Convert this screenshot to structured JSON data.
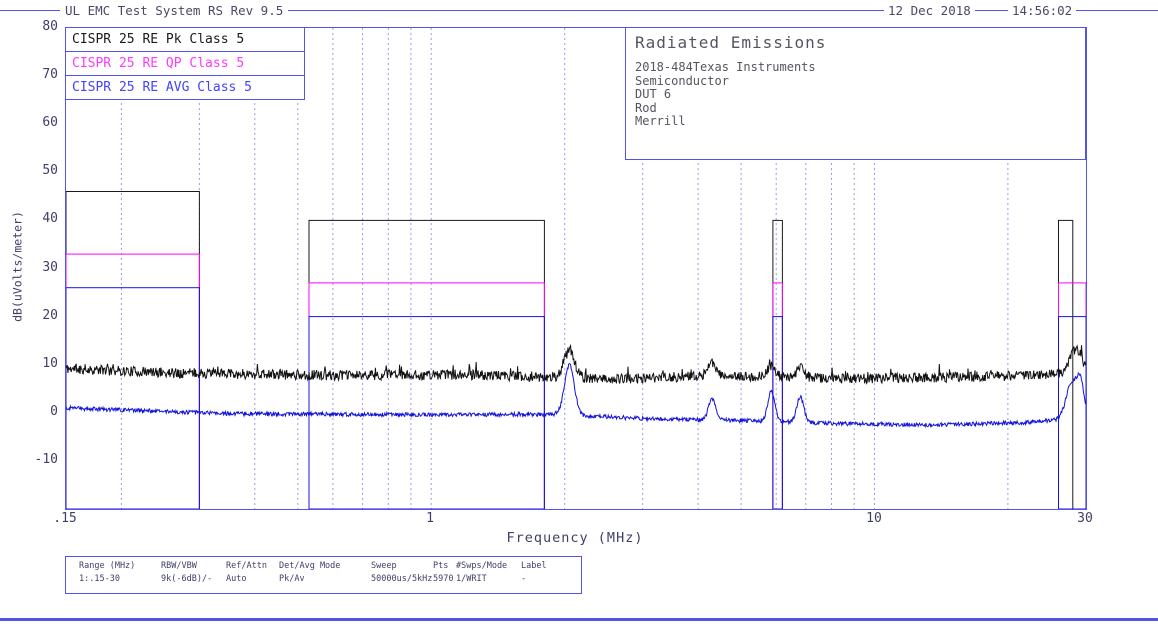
{
  "header": {
    "title": "UL EMC Test System RS Rev 9.5",
    "date": "12 Dec 2018",
    "time": "14:56:02"
  },
  "legend": {
    "items": [
      {
        "label": "CISPR 25 RE Pk Class 5",
        "color": "#1a1a1a"
      },
      {
        "label": "CISPR 25 RE QP Class 5",
        "color": "#ff3aff"
      },
      {
        "label": "CISPR 25 RE AVG Class 5",
        "color": "#4343ff"
      }
    ]
  },
  "info_box": {
    "title": "Radiated Emissions",
    "lines": [
      "2018-484Texas Instruments",
      "Semiconductor",
      "DUT 6",
      "Rod",
      "Merrill"
    ]
  },
  "settings_table": {
    "headers": [
      "Range (MHz)",
      "RBW/VBW",
      "Ref/Attn",
      "Det/Avg Mode",
      "Sweep",
      "Pts",
      "#Swps/Mode",
      "Label"
    ],
    "values": [
      "1:.15-30",
      "9k(-6dB)/-",
      "Auto",
      "Pk/Av",
      "50000us/5kHz",
      "5970",
      "1/WRIT",
      "-"
    ]
  },
  "chart_data": {
    "type": "line",
    "title": "Radiated Emissions",
    "xlabel": "Frequency (MHz)",
    "ylabel": "dB(uVolts/meter)",
    "xscale": "log",
    "xlim": [
      0.15,
      30
    ],
    "ylim": [
      -20,
      80
    ],
    "yticks": [
      80,
      70,
      60,
      50,
      40,
      30,
      20,
      10,
      0,
      -10
    ],
    "xticks": [
      {
        "value": 0.15,
        "label": ".15"
      },
      {
        "value": 1,
        "label": "1"
      },
      {
        "value": 10,
        "label": "10"
      },
      {
        "value": 30,
        "label": "30"
      }
    ],
    "grid_verticals": [
      0.2,
      0.3,
      0.4,
      0.5,
      0.6,
      0.7,
      0.8,
      0.9,
      1,
      2,
      3,
      4,
      5,
      6,
      7,
      8,
      9,
      10,
      20
    ],
    "grid_on": true,
    "legend_position": "top-left",
    "colors": {
      "frame": "#5353e8",
      "grid": "#9a9af0"
    },
    "limits": [
      {
        "name": "CISPR 25 RE Pk Class 5",
        "color": "#1a1a1a",
        "segments": [
          {
            "f_start": 0.15,
            "f_stop": 0.3,
            "level_db": 46
          },
          {
            "f_start": 0.53,
            "f_stop": 1.8,
            "level_db": 40
          },
          {
            "f_start": 5.9,
            "f_stop": 6.2,
            "level_db": 40
          },
          {
            "f_start": 26,
            "f_stop": 28,
            "level_db": 40
          }
        ]
      },
      {
        "name": "CISPR 25 RE QP Class 5",
        "color": "#ff00ff",
        "segments": [
          {
            "f_start": 0.15,
            "f_stop": 0.3,
            "level_db": 33
          },
          {
            "f_start": 0.53,
            "f_stop": 1.8,
            "level_db": 27
          },
          {
            "f_start": 5.9,
            "f_stop": 6.2,
            "level_db": 27
          },
          {
            "f_start": 26,
            "f_stop": 30,
            "level_db": 27
          }
        ]
      },
      {
        "name": "CISPR 25 RE AVG Class 5",
        "color": "#1414e6",
        "segments": [
          {
            "f_start": 0.15,
            "f_stop": 0.3,
            "level_db": 26
          },
          {
            "f_start": 0.53,
            "f_stop": 1.8,
            "level_db": 20
          },
          {
            "f_start": 5.9,
            "f_stop": 6.2,
            "level_db": 20
          },
          {
            "f_start": 26,
            "f_stop": 30,
            "level_db": 20
          }
        ]
      }
    ],
    "traces": [
      {
        "name": "peak-detector-trace",
        "color": "#111111",
        "seed": 11,
        "noise_db": 1.05,
        "spike_db": 1.9,
        "baseline": [
          [
            0.15,
            9.2
          ],
          [
            0.25,
            8.3
          ],
          [
            0.6,
            7.8
          ],
          [
            1.2,
            7.9
          ],
          [
            2.6,
            7.0
          ],
          [
            4,
            7.6
          ],
          [
            6,
            7.4
          ],
          [
            9,
            7.1
          ],
          [
            15,
            7.4
          ],
          [
            23,
            7.8
          ],
          [
            30,
            8.7
          ]
        ],
        "peaks": [
          {
            "f": 2.05,
            "amp": 5.6,
            "width": 0.012
          },
          {
            "f": 4.3,
            "amp": 2.4,
            "width": 0.01
          },
          {
            "f": 5.85,
            "amp": 2.4,
            "width": 0.009
          },
          {
            "f": 6.8,
            "amp": 2.0,
            "width": 0.009
          },
          {
            "f": 28.4,
            "amp": 4.6,
            "width": 0.013
          }
        ]
      },
      {
        "name": "average-detector-trace",
        "color": "#1212dd",
        "seed": 4,
        "noise_db": 0.42,
        "spike_db": 0,
        "baseline": [
          [
            0.15,
            1.0
          ],
          [
            0.35,
            -0.2
          ],
          [
            1,
            -0.4
          ],
          [
            1.9,
            -0.3
          ],
          [
            3,
            -1.2
          ],
          [
            5,
            -1.6
          ],
          [
            8,
            -2.2
          ],
          [
            14,
            -2.5
          ],
          [
            22,
            -2.0
          ],
          [
            30,
            -0.9
          ]
        ],
        "peaks": [
          {
            "f": 2.05,
            "amp": 10.4,
            "width": 0.011
          },
          {
            "f": 4.3,
            "amp": 4.3,
            "width": 0.008
          },
          {
            "f": 5.85,
            "amp": 6.2,
            "width": 0.008
          },
          {
            "f": 6.8,
            "amp": 5.2,
            "width": 0.008
          },
          {
            "f": 27.9,
            "amp": 7.4,
            "width": 0.013
          },
          {
            "f": 29.2,
            "amp": 6.2,
            "width": 0.008
          }
        ]
      }
    ]
  }
}
